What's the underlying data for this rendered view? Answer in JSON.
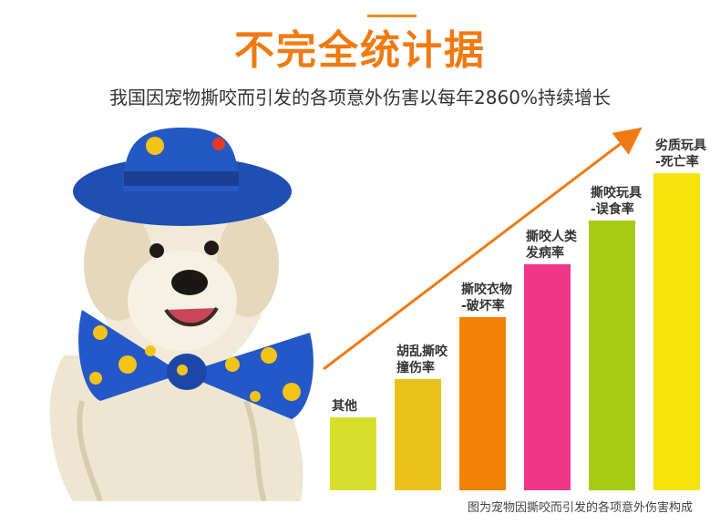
{
  "header": {
    "title": "不完全统计据",
    "subtitle": "我国因宠物撕咬而引发的各项意外伤害以每年2860%持续增长"
  },
  "chart_data": {
    "type": "bar",
    "categories": [
      [
        "其他"
      ],
      [
        "胡乱撕咬",
        "撞伤率"
      ],
      [
        "撕咬衣物",
        "-破坏率"
      ],
      [
        "撕咬人类",
        "发病率"
      ],
      [
        "撕咬玩具",
        "-误食率"
      ],
      [
        "劣质玩具",
        "-死亡率"
      ]
    ],
    "values": [
      80,
      122,
      190,
      248,
      296,
      348
    ],
    "colors": [
      "#d8de2c",
      "#e8c21a",
      "#f28205",
      "#f2368a",
      "#a6cc12",
      "#f8e20e"
    ],
    "ylim": [
      0,
      360
    ],
    "trend_arrow": true,
    "grid": false
  },
  "caption": "图为宠物因撕咬而引发的各项意外伤害构成"
}
